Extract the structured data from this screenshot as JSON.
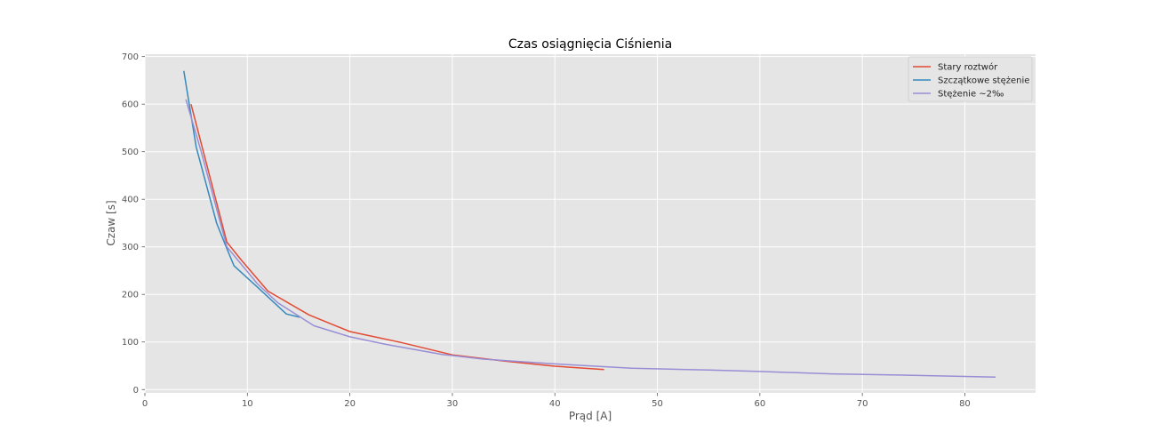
{
  "chart_data": {
    "type": "line",
    "title": "Czas osiągnięcia Ciśnienia",
    "xlabel": "Prąd [A]",
    "ylabel": "Czaw [s]",
    "xlim": [
      0,
      86.9
    ],
    "ylim": [
      -7,
      705
    ],
    "xticks": [
      "0",
      "10",
      "20",
      "30",
      "40",
      "50",
      "60",
      "70",
      "80"
    ],
    "yticks": [
      "0",
      "100",
      "200",
      "300",
      "400",
      "500",
      "600",
      "700"
    ],
    "grid": true,
    "legend_position": "top-right",
    "background": "#e5e5e5",
    "series": [
      {
        "name": "Stary roztwór",
        "color": "#e24a33",
        "x": [
          4.5,
          8,
          9.5,
          12,
          16,
          20,
          25,
          30,
          35,
          40,
          44.8
        ],
        "y": [
          600,
          310,
          270,
          207,
          157,
          122,
          99,
          73,
          60,
          49,
          42
        ]
      },
      {
        "name": "Szczątkowe stężenie",
        "color": "#348abd",
        "x": [
          3.8,
          5,
          7,
          7.8,
          8.7,
          11,
          13.8,
          15.1
        ],
        "y": [
          670,
          510,
          350,
          307,
          260,
          215,
          159,
          152
        ]
      },
      {
        "name": "Stężenie ~2‰",
        "color": "#988ed5",
        "x": [
          4,
          5.5,
          8,
          11,
          13,
          16.5,
          20,
          23.5,
          29,
          33,
          40,
          47.5,
          55,
          60,
          67,
          75,
          83
        ],
        "y": [
          610,
          500,
          300,
          222,
          182,
          134,
          111,
          95,
          74,
          64,
          54,
          45,
          41,
          38,
          33,
          30,
          26
        ]
      }
    ]
  }
}
